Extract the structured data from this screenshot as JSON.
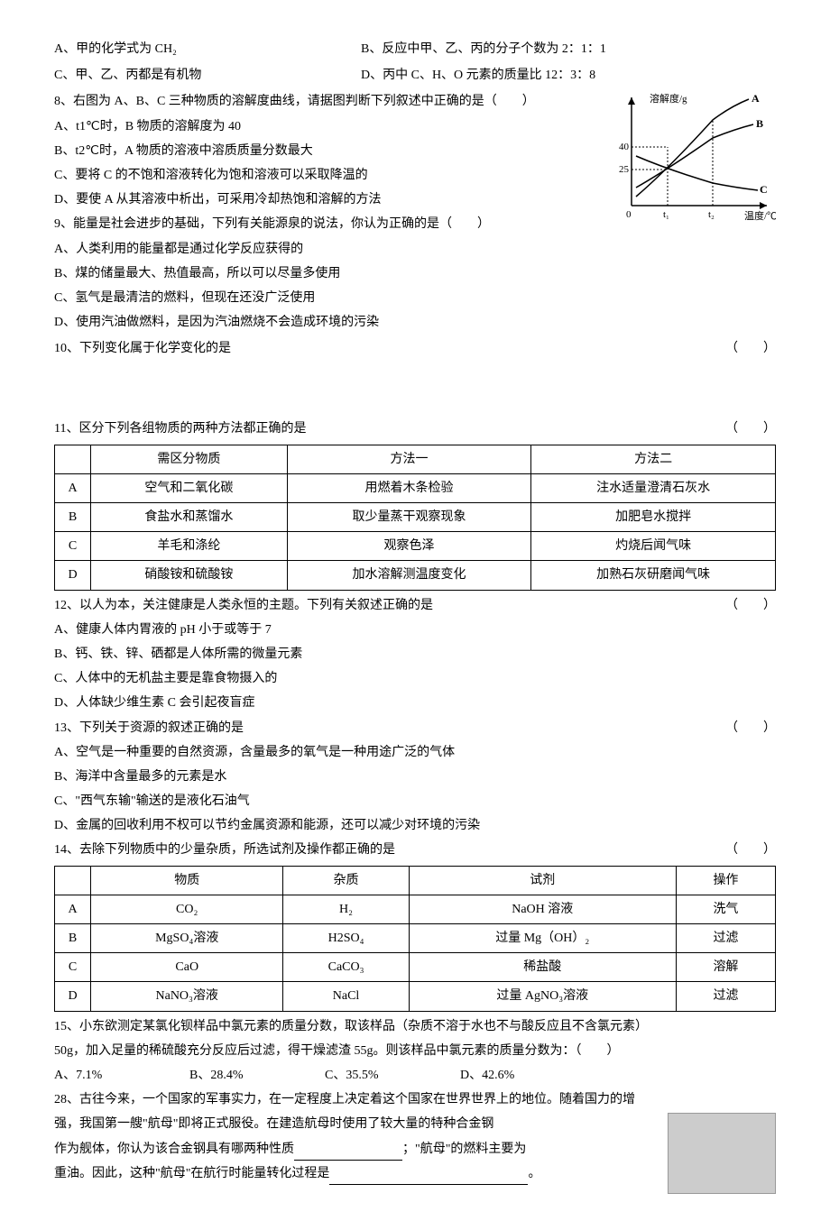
{
  "q7": {
    "a": "A、甲的化学式为 CH₂",
    "b": "B、反应中甲、乙、丙的分子个数为 2：1：1",
    "c": "C、甲、乙、丙都是有机物",
    "d": "D、丙中 C、H、O 元素的质量比 12：3：8"
  },
  "q8": {
    "stem": "8、右图为 A、B、C 三种物质的溶解度曲线，请据图判断下列叙述中正确的是（　　）",
    "a": "A、t1℃时，B 物质的溶解度为 40",
    "b": "B、t2℃时，A 物质的溶液中溶质质量分数最大",
    "c": "C、要将 C 的不饱和溶液转化为饱和溶液可以采取降温的",
    "d": "D、要使 A 从其溶液中析出，可采用冷却热饱和溶解的方法"
  },
  "q9": {
    "stem": "9、能量是社会进步的基础，下列有关能源泉的说法，你认为正确的是（　　）",
    "a": "A、人类利用的能量都是通过化学反应获得的",
    "b": "B、煤的储量最大、热值最高，所以可以尽量多使用",
    "c": "C、氢气是最清洁的燃料，但现在还没广泛使用",
    "d": "D、使用汽油做燃料，是因为汽油燃烧不会造成环境的污染"
  },
  "q10": {
    "stem": "10、下列变化属于化学变化的是",
    "bracket": "（　　）"
  },
  "q11": {
    "stem": "11、区分下列各组物质的两种方法都正确的是",
    "bracket": "（　　）",
    "headers": [
      "",
      "需区分物质",
      "方法一",
      "方法二"
    ],
    "rows": [
      [
        "A",
        "空气和二氧化碳",
        "用燃着木条检验",
        "注水适量澄清石灰水"
      ],
      [
        "B",
        "食盐水和蒸馏水",
        "取少量蒸干观察现象",
        "加肥皂水搅拌"
      ],
      [
        "C",
        "羊毛和涤纶",
        "观察色泽",
        "灼烧后闻气味"
      ],
      [
        "D",
        "硝酸铵和硫酸铵",
        "加水溶解测温度变化",
        "加熟石灰研磨闻气味"
      ]
    ]
  },
  "q12": {
    "stem": "12、以人为本，关注健康是人类永恒的主题。下列有关叙述正确的是",
    "bracket": "（　　）",
    "a": "A、健康人体内胃液的 pH 小于或等于 7",
    "b": "B、钙、铁、锌、硒都是人体所需的微量元素",
    "c": "C、人体中的无机盐主要是靠食物摄入的",
    "d": "D、人体缺少维生素 C 会引起夜盲症"
  },
  "q13": {
    "stem": "13、下列关于资源的叙述正确的是",
    "bracket": "（　　）",
    "a": "A、空气是一种重要的自然资源，含量最多的氧气是一种用途广泛的气体",
    "b": "B、海洋中含量最多的元素是水",
    "c": "C、\"西气东输\"输送的是液化石油气",
    "d": "D、金属的回收利用不权可以节约金属资源和能源，还可以减少对环境的污染"
  },
  "q14": {
    "stem": "14、去除下列物质中的少量杂质，所选试剂及操作都正确的是",
    "bracket": "（　　）",
    "headers": [
      "",
      "物质",
      "杂质",
      "试剂",
      "操作"
    ],
    "rows": [
      [
        "A",
        "CO₂",
        "H₂",
        "NaOH 溶液",
        "洗气"
      ],
      [
        "B",
        "MgSO₄溶液",
        "H2SO₄",
        "过量 Mg（OH）₂",
        "过滤"
      ],
      [
        "C",
        "CaO",
        "CaCO₃",
        "稀盐酸",
        "溶解"
      ],
      [
        "D",
        "NaNO₃溶液",
        "NaCl",
        "过量 AgNO₃溶液",
        "过滤"
      ]
    ]
  },
  "q15": {
    "stem1": "15、小东欲测定某氯化钡样品中氯元素的质量分数，取该样品（杂质不溶于水也不与酸反应且不含氯元素）",
    "stem2": "50g，加入足量的稀硫酸充分反应后过滤，得干燥滤渣 55g。则该样品中氯元素的质量分数为：（　　）",
    "a": "A、7.1%",
    "b": "B、28.4%",
    "c": "C、35.5%",
    "d": "D、42.6%"
  },
  "q28": {
    "l1": "28、古往今来，一个国家的军事实力，在一定程度上决定着这个国家在世界世界上的地位。随着国力的增",
    "l2": "强，我国第一艘\"航母\"即将正式服役。在建造航母时使用了较大量的特种合金钢",
    "l3a": "作为舰体，你认为该合金钢具有哪两种性质",
    "l3b": "；\"航母\"的燃料主要为",
    "l4a": "重油。因此，这种\"航母\"在航行时能量转化过程是",
    "l4b": "。"
  },
  "chart": {
    "ylabel": "溶解度/g",
    "xlabel": "温度/℃",
    "y_ticks": [
      "25",
      "40"
    ],
    "x_ticks": [
      "0",
      "t₁",
      "t₂"
    ],
    "curves": [
      "A",
      "B",
      "C"
    ]
  }
}
